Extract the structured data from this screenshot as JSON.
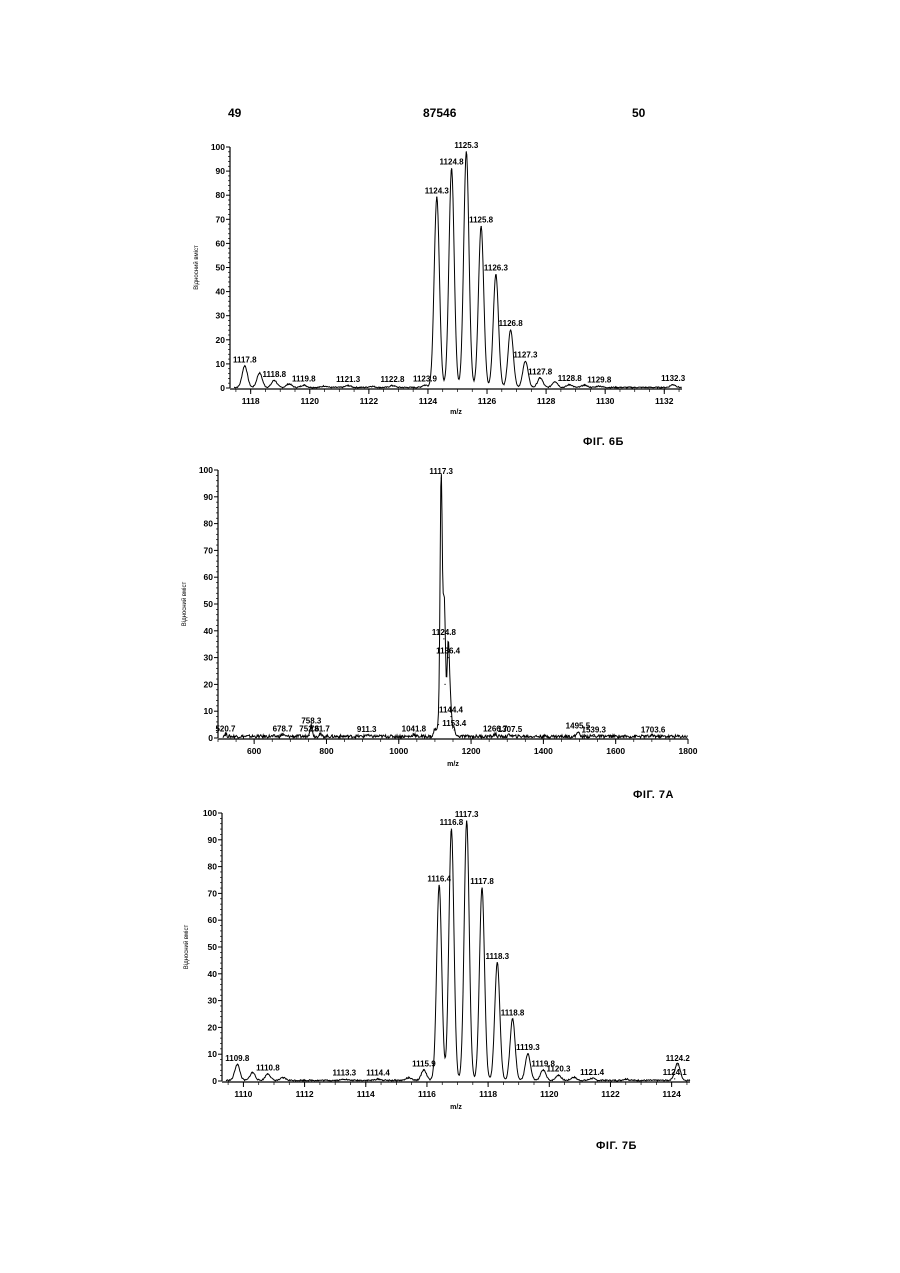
{
  "header": {
    "left": "49",
    "center": "87546",
    "right": "50"
  },
  "chart_data": [
    {
      "type": "line",
      "caption": "ФІГ. 6Б",
      "xlabel": "m/z",
      "ylabel": "Відносний вміст",
      "xlim": [
        1117.3,
        1132.6
      ],
      "ylim": [
        0,
        100
      ],
      "xticks": [
        1118,
        1120,
        1122,
        1124,
        1126,
        1128,
        1130,
        1132
      ],
      "yticks": [
        0,
        10,
        20,
        30,
        40,
        50,
        60,
        70,
        80,
        90,
        100
      ],
      "peaks": [
        {
          "x": 1117.8,
          "y": 9
        },
        {
          "x": 1118.3,
          "y": 6
        },
        {
          "x": 1118.8,
          "y": 3
        },
        {
          "x": 1119.3,
          "y": 1.5
        },
        {
          "x": 1119.8,
          "y": 1
        },
        {
          "x": 1120.5,
          "y": 0.6
        },
        {
          "x": 1121.3,
          "y": 0.8
        },
        {
          "x": 1122.1,
          "y": 0.5
        },
        {
          "x": 1122.8,
          "y": 0.8
        },
        {
          "x": 1123.9,
          "y": 1
        },
        {
          "x": 1124.3,
          "y": 79
        },
        {
          "x": 1124.8,
          "y": 91
        },
        {
          "x": 1125.3,
          "y": 98
        },
        {
          "x": 1125.8,
          "y": 67
        },
        {
          "x": 1126.3,
          "y": 47
        },
        {
          "x": 1126.8,
          "y": 24
        },
        {
          "x": 1127.3,
          "y": 11
        },
        {
          "x": 1127.8,
          "y": 4
        },
        {
          "x": 1128.3,
          "y": 2.5
        },
        {
          "x": 1128.8,
          "y": 1.2
        },
        {
          "x": 1129.3,
          "y": 1
        },
        {
          "x": 1129.8,
          "y": 0.6
        },
        {
          "x": 1132.3,
          "y": 1.2
        }
      ],
      "labels": [
        {
          "text": "1117.8",
          "x": 1117.8,
          "y": 9
        },
        {
          "text": "1118.8",
          "x": 1118.8,
          "y": 3
        },
        {
          "text": "1119.8",
          "x": 1119.8,
          "y": 1
        },
        {
          "text": "1121.3",
          "x": 1121.3,
          "y": 0.8
        },
        {
          "text": "1122.8",
          "x": 1122.8,
          "y": 0.8
        },
        {
          "text": "1123.9",
          "x": 1123.9,
          "y": 1
        },
        {
          "text": "1124.3",
          "x": 1124.3,
          "y": 79
        },
        {
          "text": "1124.8",
          "x": 1124.8,
          "y": 91
        },
        {
          "text": "1125.3",
          "x": 1125.3,
          "y": 98
        },
        {
          "text": "1125.8",
          "x": 1125.8,
          "y": 67
        },
        {
          "text": "1126.3",
          "x": 1126.3,
          "y": 47
        },
        {
          "text": "1126.8",
          "x": 1126.8,
          "y": 24
        },
        {
          "text": "1127.3",
          "x": 1127.3,
          "y": 11
        },
        {
          "text": "1127.8",
          "x": 1127.8,
          "y": 4
        },
        {
          "text": "1128.8",
          "x": 1128.8,
          "y": 1.2
        },
        {
          "text": "1129.8",
          "x": 1129.8,
          "y": 0.6
        },
        {
          "text": "1132.3",
          "x": 1132.3,
          "y": 1.2
        }
      ]
    },
    {
      "type": "line",
      "caption": "ФІГ. 7А",
      "xlabel": "m/z",
      "ylabel": "Відносний вміст",
      "xlim": [
        500,
        1800
      ],
      "ylim": [
        0,
        100
      ],
      "xticks": [
        600,
        800,
        1000,
        1200,
        1400,
        1600,
        1800
      ],
      "yticks": [
        0,
        10,
        20,
        30,
        40,
        50,
        60,
        70,
        80,
        90,
        100
      ],
      "peaks": [
        {
          "x": 520.7,
          "y": 1
        },
        {
          "x": 678.7,
          "y": 1
        },
        {
          "x": 752.6,
          "y": 1
        },
        {
          "x": 758.3,
          "y": 4
        },
        {
          "x": 781.7,
          "y": 1
        },
        {
          "x": 911.3,
          "y": 0.8
        },
        {
          "x": 1041.8,
          "y": 1
        },
        {
          "x": 1100.0,
          "y": 3
        },
        {
          "x": 1109.8,
          "y": 5
        },
        {
          "x": 1117.3,
          "y": 97
        },
        {
          "x": 1124.8,
          "y": 37
        },
        {
          "x": 1128.0,
          "y": 20
        },
        {
          "x": 1136.4,
          "y": 30
        },
        {
          "x": 1140.0,
          "y": 10
        },
        {
          "x": 1144.4,
          "y": 8
        },
        {
          "x": 1153.4,
          "y": 3
        },
        {
          "x": 1266.7,
          "y": 1
        },
        {
          "x": 1307.5,
          "y": 0.8
        },
        {
          "x": 1495.5,
          "y": 2
        },
        {
          "x": 1539.3,
          "y": 0.5
        },
        {
          "x": 1703.6,
          "y": 0.5
        }
      ],
      "labels": [
        {
          "text": "520.7",
          "x": 520.7,
          "y": 1
        },
        {
          "text": "678.7",
          "x": 678.7,
          "y": 1
        },
        {
          "text": "752.6",
          "x": 752.6,
          "y": 1
        },
        {
          "text": "758.3",
          "x": 758.3,
          "y": 4
        },
        {
          "text": "781.7",
          "x": 781.7,
          "y": 1
        },
        {
          "text": "911.3",
          "x": 911.3,
          "y": 0.8
        },
        {
          "text": "1041.8",
          "x": 1041.8,
          "y": 1
        },
        {
          "text": "1117.3",
          "x": 1117.3,
          "y": 97
        },
        {
          "text": "1124.8",
          "x": 1124.8,
          "y": 37
        },
        {
          "text": "1136.4",
          "x": 1136.4,
          "y": 30
        },
        {
          "text": "1144.4",
          "x": 1144.4,
          "y": 8
        },
        {
          "text": "1153.4",
          "x": 1153.4,
          "y": 3
        },
        {
          "text": "1266.7",
          "x": 1266.7,
          "y": 1
        },
        {
          "text": "1307.5",
          "x": 1307.5,
          "y": 0.8
        },
        {
          "text": "1495.5",
          "x": 1495.5,
          "y": 2
        },
        {
          "text": "1539.3",
          "x": 1539.3,
          "y": 0.5
        },
        {
          "text": "1703.6",
          "x": 1703.6,
          "y": 0.5
        }
      ]
    },
    {
      "type": "line",
      "caption": "ФІГ. 7Б",
      "xlabel": "m/z",
      "ylabel": "Відносний вміст",
      "xlim": [
        1109.3,
        1124.6
      ],
      "ylim": [
        0,
        100
      ],
      "xticks": [
        1110,
        1112,
        1114,
        1116,
        1118,
        1120,
        1122,
        1124
      ],
      "yticks": [
        0,
        10,
        20,
        30,
        40,
        50,
        60,
        70,
        80,
        90,
        100
      ],
      "peaks": [
        {
          "x": 1109.8,
          "y": 6
        },
        {
          "x": 1110.3,
          "y": 3
        },
        {
          "x": 1110.8,
          "y": 2.5
        },
        {
          "x": 1111.3,
          "y": 1
        },
        {
          "x": 1113.3,
          "y": 0.5
        },
        {
          "x": 1114.4,
          "y": 0.5
        },
        {
          "x": 1115.4,
          "y": 1
        },
        {
          "x": 1115.9,
          "y": 4
        },
        {
          "x": 1116.4,
          "y": 73
        },
        {
          "x": 1116.8,
          "y": 94
        },
        {
          "x": 1117.3,
          "y": 97
        },
        {
          "x": 1117.8,
          "y": 72
        },
        {
          "x": 1118.3,
          "y": 44
        },
        {
          "x": 1118.8,
          "y": 23
        },
        {
          "x": 1119.3,
          "y": 10
        },
        {
          "x": 1119.8,
          "y": 4
        },
        {
          "x": 1120.3,
          "y": 2
        },
        {
          "x": 1120.8,
          "y": 1.2
        },
        {
          "x": 1121.4,
          "y": 0.8
        },
        {
          "x": 1122.5,
          "y": 0.5
        },
        {
          "x": 1124.1,
          "y": 0.8
        },
        {
          "x": 1124.2,
          "y": 6
        }
      ],
      "labels": [
        {
          "text": "1109.8",
          "x": 1109.8,
          "y": 6
        },
        {
          "text": "1110.8",
          "x": 1110.8,
          "y": 2.5
        },
        {
          "text": "1113.3",
          "x": 1113.3,
          "y": 0.5
        },
        {
          "text": "1114.4",
          "x": 1114.4,
          "y": 0.5
        },
        {
          "text": "1115.9",
          "x": 1115.9,
          "y": 4
        },
        {
          "text": "1116.4",
          "x": 1116.4,
          "y": 73
        },
        {
          "text": "1116.8",
          "x": 1116.8,
          "y": 94
        },
        {
          "text": "1117.3",
          "x": 1117.3,
          "y": 97
        },
        {
          "text": "1117.8",
          "x": 1117.8,
          "y": 72
        },
        {
          "text": "1118.3",
          "x": 1118.3,
          "y": 44
        },
        {
          "text": "1118.8",
          "x": 1118.8,
          "y": 23
        },
        {
          "text": "1119.3",
          "x": 1119.3,
          "y": 10
        },
        {
          "text": "1119.8",
          "x": 1119.8,
          "y": 4
        },
        {
          "text": "1120.3",
          "x": 1120.3,
          "y": 2
        },
        {
          "text": "1121.4",
          "x": 1121.4,
          "y": 0.8
        },
        {
          "text": "1124.1",
          "x": 1124.1,
          "y": 0.8
        },
        {
          "text": "1124.2",
          "x": 1124.2,
          "y": 6
        }
      ]
    }
  ]
}
